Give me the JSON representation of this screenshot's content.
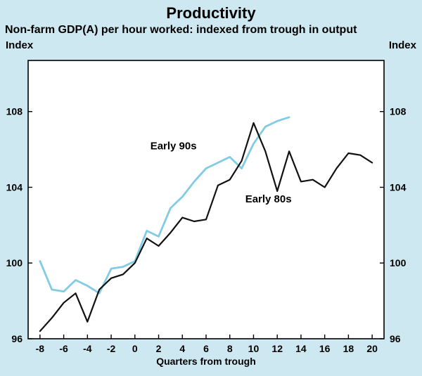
{
  "page": {
    "background_color": "#cde8f1"
  },
  "chart_data": {
    "type": "line",
    "title": "Productivity",
    "subtitle": "Non-farm GDP(A) per hour worked: indexed from trough in output",
    "xlabel": "Quarters from trough",
    "ylabel_left": "Index",
    "ylabel_right": "Index",
    "xlim": [
      -9,
      21
    ],
    "ylim": [
      96,
      110.7
    ],
    "xticks": [
      -8,
      -6,
      -4,
      -2,
      0,
      2,
      4,
      6,
      8,
      10,
      12,
      14,
      16,
      18,
      20
    ],
    "yticks": [
      96,
      100,
      104,
      108
    ],
    "grid": false,
    "plot_bg": "#ffffff",
    "axis_color": "#000000",
    "series": [
      {
        "name": "Early 90s",
        "color": "#82cbe5",
        "width": 2.8,
        "x": [
          -8,
          -7,
          -6,
          -5,
          -4,
          -3,
          -2,
          -1,
          0,
          1,
          2,
          3,
          4,
          5,
          6,
          7,
          8,
          9,
          10,
          11,
          12,
          13
        ],
        "y": [
          100.1,
          98.6,
          98.5,
          99.1,
          98.8,
          98.4,
          99.7,
          99.8,
          100.1,
          101.7,
          101.4,
          102.9,
          103.5,
          104.3,
          105.0,
          105.3,
          105.6,
          105.0,
          106.3,
          107.2,
          107.5,
          107.7
        ],
        "label": {
          "text": "Early 90s",
          "x": 1.3,
          "y": 106.0
        }
      },
      {
        "name": "Early 80s",
        "color": "#111111",
        "width": 2.2,
        "x": [
          -8,
          -7,
          -6,
          -5,
          -4,
          -3,
          -2,
          -1,
          0,
          1,
          2,
          3,
          4,
          5,
          6,
          7,
          8,
          9,
          10,
          11,
          12,
          13,
          14,
          15,
          16,
          17,
          18,
          19,
          20
        ],
        "y": [
          96.4,
          97.1,
          97.9,
          98.4,
          96.9,
          98.6,
          99.2,
          99.4,
          100.0,
          101.3,
          100.9,
          101.6,
          102.4,
          102.2,
          102.3,
          104.1,
          104.4,
          105.4,
          107.4,
          105.9,
          103.8,
          105.9,
          104.3,
          104.4,
          104.0,
          105.0,
          105.8,
          105.7,
          105.3
        ],
        "label": {
          "text": "Early 80s",
          "x": 9.3,
          "y": 103.2
        }
      }
    ]
  }
}
